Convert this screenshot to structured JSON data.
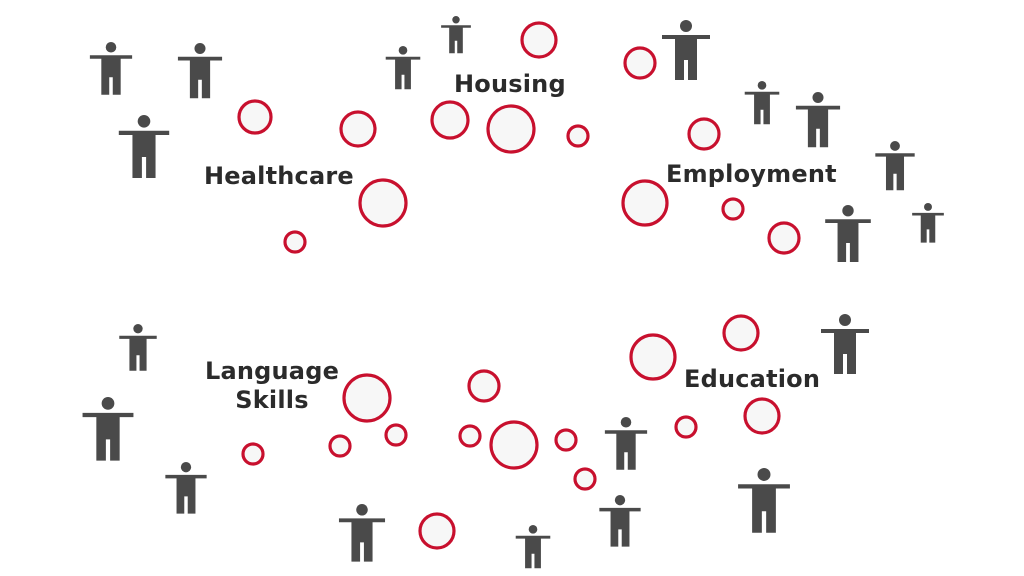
{
  "labels": {
    "healthcare": "Healthcare",
    "housing": "Housing",
    "employment": "Employment",
    "language": "Language Skills",
    "education": "Education"
  },
  "colors": {
    "bubble_stroke": "#c8102e",
    "bubble_fill": "#f7f7f7",
    "person": "#4a4a4a",
    "text": "#2b2b2b",
    "background": "#ffffff"
  },
  "icons": {
    "bubble": "circle-icon",
    "person": "person-icon"
  }
}
